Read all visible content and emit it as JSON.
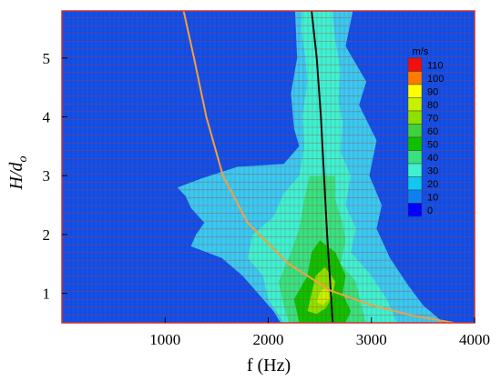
{
  "chart_data": {
    "type": "heatmap",
    "xlabel": "f (Hz)",
    "ylabel_main": "H/d",
    "ylabel_sub": "o",
    "xlim": [
      0,
      4000
    ],
    "ylim": [
      0.5,
      5.8
    ],
    "xticks": [
      1000,
      2000,
      3000,
      4000
    ],
    "yticks": [
      1,
      2,
      3,
      4,
      5
    ],
    "grid": true,
    "legend": {
      "position": "right",
      "title": "m/s",
      "levels": [
        "110",
        "100",
        "90",
        "80",
        "70",
        "60",
        "50",
        "40",
        "30",
        "20",
        "10",
        "0"
      ],
      "colors": [
        "#f01010",
        "#ff7a00",
        "#ffff00",
        "#c8f000",
        "#8ee000",
        "#40d040",
        "#10c000",
        "#3ae080",
        "#40f0d0",
        "#10c8f0",
        "#1080f0",
        "#0000ff"
      ]
    },
    "background_color": "#1450e8",
    "contours": [
      {
        "level": 10,
        "color": "#3cc8f0",
        "points": [
          [
            2120,
            0.5
          ],
          [
            2050,
            0.7
          ],
          [
            1900,
            1.0
          ],
          [
            1750,
            1.3
          ],
          [
            1550,
            1.6
          ],
          [
            1250,
            1.8
          ],
          [
            1300,
            2.0
          ],
          [
            1380,
            2.2
          ],
          [
            1250,
            2.45
          ],
          [
            1200,
            2.65
          ],
          [
            1120,
            2.8
          ],
          [
            1350,
            2.95
          ],
          [
            1700,
            3.15
          ],
          [
            2150,
            3.2
          ],
          [
            2300,
            3.5
          ],
          [
            2250,
            3.8
          ],
          [
            2220,
            4.4
          ],
          [
            2280,
            5.0
          ],
          [
            2260,
            5.8
          ],
          [
            2820,
            5.8
          ],
          [
            2750,
            5.2
          ],
          [
            2950,
            4.6
          ],
          [
            2880,
            4.2
          ],
          [
            3050,
            3.6
          ],
          [
            2980,
            3.0
          ],
          [
            3100,
            2.5
          ],
          [
            3050,
            2.1
          ],
          [
            3180,
            1.6
          ],
          [
            3350,
            1.15
          ],
          [
            3500,
            0.8
          ],
          [
            3700,
            0.5
          ]
        ]
      },
      {
        "level": 20,
        "color": "#40f0d0",
        "points": [
          [
            2150,
            0.5
          ],
          [
            2000,
            0.9
          ],
          [
            1950,
            1.3
          ],
          [
            1800,
            1.6
          ],
          [
            1850,
            2.0
          ],
          [
            2050,
            2.3
          ],
          [
            2150,
            2.7
          ],
          [
            2300,
            3.0
          ],
          [
            2350,
            3.5
          ],
          [
            2330,
            4.0
          ],
          [
            2380,
            4.6
          ],
          [
            2360,
            5.0
          ],
          [
            2320,
            5.5
          ],
          [
            2330,
            5.8
          ],
          [
            2620,
            5.8
          ],
          [
            2650,
            5.3
          ],
          [
            2700,
            4.8
          ],
          [
            2680,
            4.3
          ],
          [
            2720,
            3.9
          ],
          [
            2700,
            3.4
          ],
          [
            2800,
            3.0
          ],
          [
            2750,
            2.5
          ],
          [
            2850,
            2.1
          ],
          [
            2800,
            1.7
          ],
          [
            3000,
            1.3
          ],
          [
            3150,
            0.9
          ],
          [
            3250,
            0.5
          ]
        ]
      },
      {
        "level": 30,
        "color": "#3ae080",
        "points": [
          [
            2200,
            0.5
          ],
          [
            2150,
            0.8
          ],
          [
            2100,
            1.2
          ],
          [
            2200,
            1.6
          ],
          [
            2300,
            2.1
          ],
          [
            2350,
            2.6
          ],
          [
            2400,
            3.0
          ],
          [
            2650,
            3.0
          ],
          [
            2650,
            2.6
          ],
          [
            2720,
            2.2
          ],
          [
            2750,
            1.9
          ],
          [
            2700,
            1.5
          ],
          [
            2850,
            1.2
          ],
          [
            2900,
            0.8
          ],
          [
            2950,
            0.5
          ]
        ]
      },
      {
        "level": 40,
        "color": "#10c000",
        "points": [
          [
            2300,
            0.5
          ],
          [
            2250,
            0.9
          ],
          [
            2380,
            1.3
          ],
          [
            2420,
            1.7
          ],
          [
            2500,
            1.9
          ],
          [
            2650,
            1.7
          ],
          [
            2750,
            1.3
          ],
          [
            2720,
            1.0
          ],
          [
            2800,
            0.7
          ],
          [
            2750,
            0.5
          ]
        ]
      },
      {
        "level": 60,
        "color": "#8ee000",
        "points": [
          [
            2380,
            0.7
          ],
          [
            2420,
            1.0
          ],
          [
            2460,
            1.3
          ],
          [
            2550,
            1.45
          ],
          [
            2650,
            1.2
          ],
          [
            2620,
            0.95
          ],
          [
            2560,
            0.75
          ],
          [
            2470,
            0.65
          ]
        ]
      },
      {
        "level": 80,
        "color": "#c8f000",
        "points": [
          [
            2470,
            0.85
          ],
          [
            2510,
            1.05
          ],
          [
            2580,
            1.1
          ],
          [
            2590,
            0.9
          ],
          [
            2530,
            0.8
          ]
        ]
      }
    ],
    "series": [
      {
        "color": "#111111",
        "points": [
          [
            2420,
            5.8
          ],
          [
            2470,
            5.0
          ],
          [
            2510,
            4.0
          ],
          [
            2540,
            3.0
          ],
          [
            2570,
            2.0
          ],
          [
            2600,
            1.2
          ],
          [
            2625,
            0.5
          ]
        ]
      },
      {
        "color": "#f2a040",
        "points": [
          [
            1180,
            5.8
          ],
          [
            1280,
            5.0
          ],
          [
            1400,
            4.0
          ],
          [
            1560,
            3.0
          ],
          [
            1800,
            2.2
          ],
          [
            2200,
            1.5
          ],
          [
            2600,
            1.05
          ],
          [
            3000,
            0.8
          ],
          [
            3400,
            0.62
          ],
          [
            3800,
            0.5
          ]
        ]
      }
    ]
  }
}
